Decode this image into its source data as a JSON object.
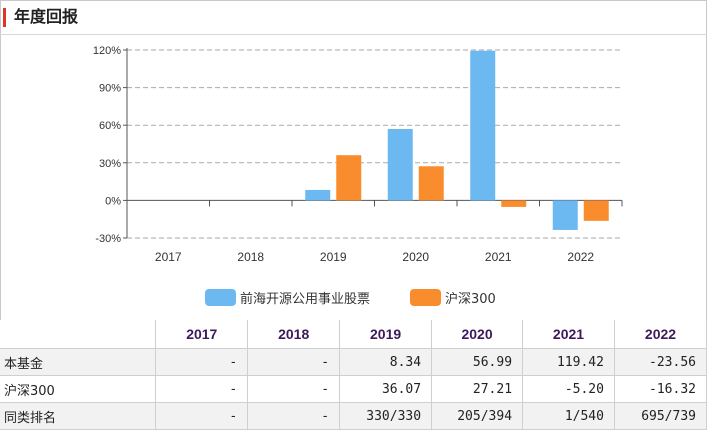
{
  "panel": {
    "title": "年度回报"
  },
  "chart_data": {
    "type": "bar",
    "categories": [
      "2017",
      "2018",
      "2019",
      "2020",
      "2021",
      "2022"
    ],
    "series": [
      {
        "name": "前海开源公用事业股票",
        "color": "#6cb9f2",
        "values": [
          null,
          null,
          8.34,
          56.99,
          119.42,
          -23.56
        ]
      },
      {
        "name": "沪深300",
        "color": "#f98d2e",
        "values": [
          null,
          null,
          36.07,
          27.21,
          -5.2,
          -16.32
        ]
      }
    ],
    "ylim": [
      -30,
      120
    ],
    "yticks": [
      -30,
      0,
      30,
      60,
      90,
      120
    ],
    "ytick_labels": [
      "-30%",
      "0%",
      "30%",
      "60%",
      "90%",
      "120%"
    ],
    "grid": true,
    "legend_position": "bottom"
  },
  "table": {
    "headers": [
      "",
      "2017",
      "2018",
      "2019",
      "2020",
      "2021",
      "2022"
    ],
    "rows": [
      {
        "label": "本基金",
        "cells": [
          "-",
          "-",
          "8.34",
          "56.99",
          "119.42",
          "-23.56"
        ]
      },
      {
        "label": "沪深300",
        "cells": [
          "-",
          "-",
          "36.07",
          "27.21",
          "-5.20",
          "-16.32"
        ]
      },
      {
        "label": "同类排名",
        "cells": [
          "-",
          "-",
          "330/330",
          "205/394",
          "1/540",
          "695/739"
        ]
      }
    ]
  }
}
